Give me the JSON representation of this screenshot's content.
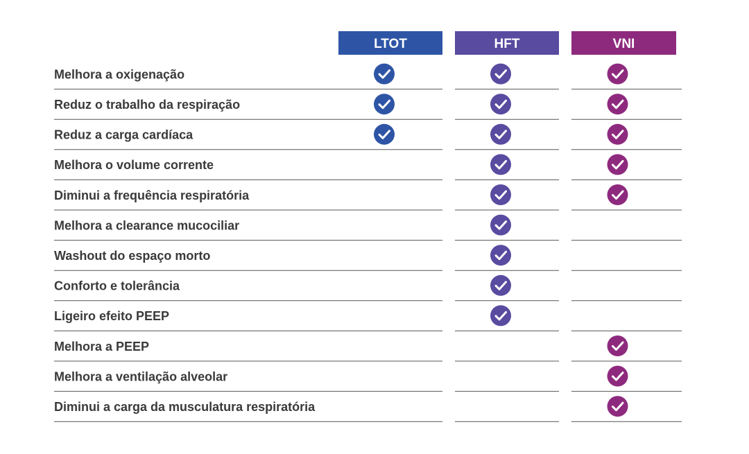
{
  "table": {
    "columns": [
      {
        "label": "LTOT",
        "color": "#2e55a5"
      },
      {
        "label": "HFT",
        "color": "#584ba0"
      },
      {
        "label": "VNI",
        "color": "#8e2a7e"
      }
    ],
    "rows": [
      {
        "label": "Melhora a oxigenação",
        "checks": [
          true,
          true,
          true
        ]
      },
      {
        "label": "Reduz o trabalho da respiração",
        "checks": [
          true,
          true,
          true
        ]
      },
      {
        "label": "Reduz a carga cardíaca",
        "checks": [
          true,
          true,
          true
        ]
      },
      {
        "label": "Melhora o volume corrente",
        "checks": [
          false,
          true,
          true
        ]
      },
      {
        "label": "Diminui a frequência respiratória",
        "checks": [
          false,
          true,
          true
        ]
      },
      {
        "label": "Melhora a clearance mucociliar",
        "checks": [
          false,
          true,
          false
        ]
      },
      {
        "label": "Washout do espaço morto",
        "checks": [
          false,
          true,
          false
        ]
      },
      {
        "label": "Conforto e tolerância",
        "checks": [
          false,
          true,
          false
        ]
      },
      {
        "label": "Ligeiro efeito PEEP",
        "checks": [
          false,
          true,
          false
        ]
      },
      {
        "label": "Melhora a PEEP",
        "checks": [
          false,
          false,
          true
        ]
      },
      {
        "label": "Melhora a ventilação alveolar",
        "checks": [
          false,
          false,
          true
        ]
      },
      {
        "label": "Diminui a carga da musculatura respiratória",
        "checks": [
          false,
          false,
          true
        ]
      }
    ]
  }
}
